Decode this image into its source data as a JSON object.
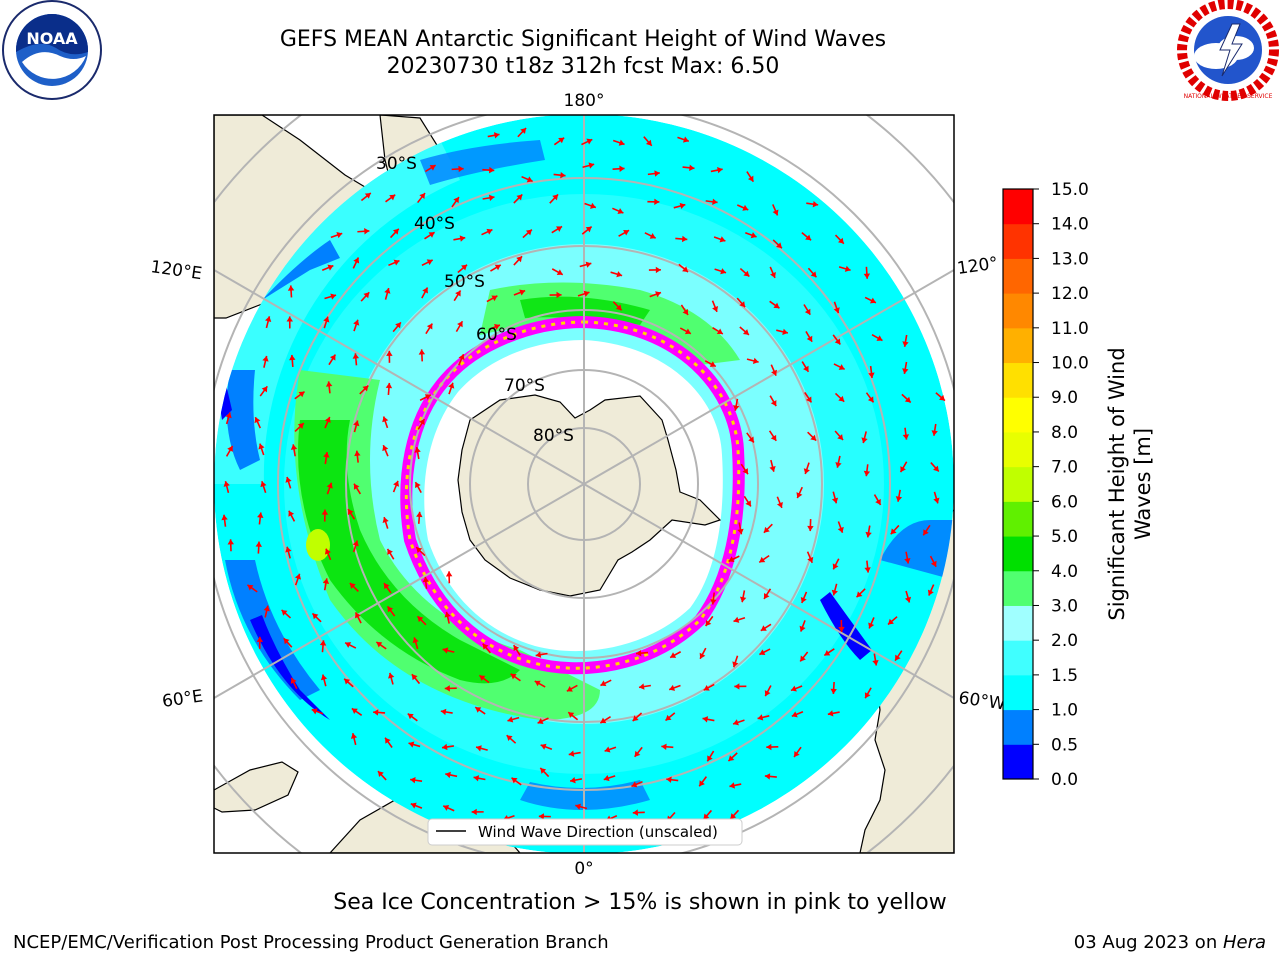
{
  "header": {
    "title_line1": "GEFS MEAN Antarctic Significant Height of Wind Waves",
    "title_line2": "20230730 t18z 312h fcst   Max: 6.50"
  },
  "logos": {
    "left_text": "NOAA",
    "right_text": "NATIONAL WEATHER SERVICE"
  },
  "map": {
    "projection": "south polar stereographic",
    "lon_labels": {
      "top": "180°",
      "bottom": "0°",
      "left_upper": "120°E",
      "left_lower": "60°E",
      "right_upper": "120°",
      "right_lower": "60°W"
    },
    "lat_labels": [
      "30°S",
      "40°S",
      "50°S",
      "60°S",
      "70°S",
      "80°S"
    ],
    "legend_label": "Wind Wave Direction (unscaled)",
    "arrow_color": "#ff0000",
    "land_color": "#efebd8",
    "ice_colors": [
      "#ff00ff",
      "#ffd700"
    ]
  },
  "colorbar": {
    "label": "Significant Height of Wind Waves [m]",
    "label_line1": "Significant Height of Wind",
    "label_line2": "Waves [m]",
    "ticks": [
      "0.0",
      "0.5",
      "1.0",
      "1.5",
      "2.0",
      "3.0",
      "4.0",
      "5.0",
      "6.0",
      "7.0",
      "8.0",
      "9.0",
      "10.0",
      "11.0",
      "12.0",
      "13.0",
      "14.0",
      "15.0"
    ],
    "colors": [
      "#0000ff",
      "#0080ff",
      "#00ffff",
      "#40ffff",
      "#a0ffff",
      "#50ff70",
      "#00e000",
      "#60f000",
      "#c0ff00",
      "#e8ff00",
      "#ffff00",
      "#ffe000",
      "#ffb000",
      "#ff8800",
      "#ff6600",
      "#ff3300",
      "#ff0000"
    ]
  },
  "caption": "Sea Ice Concentration > 15% is shown in pink to yellow",
  "footer": {
    "left": "NCEP/EMC/Verification Post Processing Product Generation Branch",
    "right_prefix": "03 Aug 2023 on ",
    "right_machine": "Hera"
  }
}
